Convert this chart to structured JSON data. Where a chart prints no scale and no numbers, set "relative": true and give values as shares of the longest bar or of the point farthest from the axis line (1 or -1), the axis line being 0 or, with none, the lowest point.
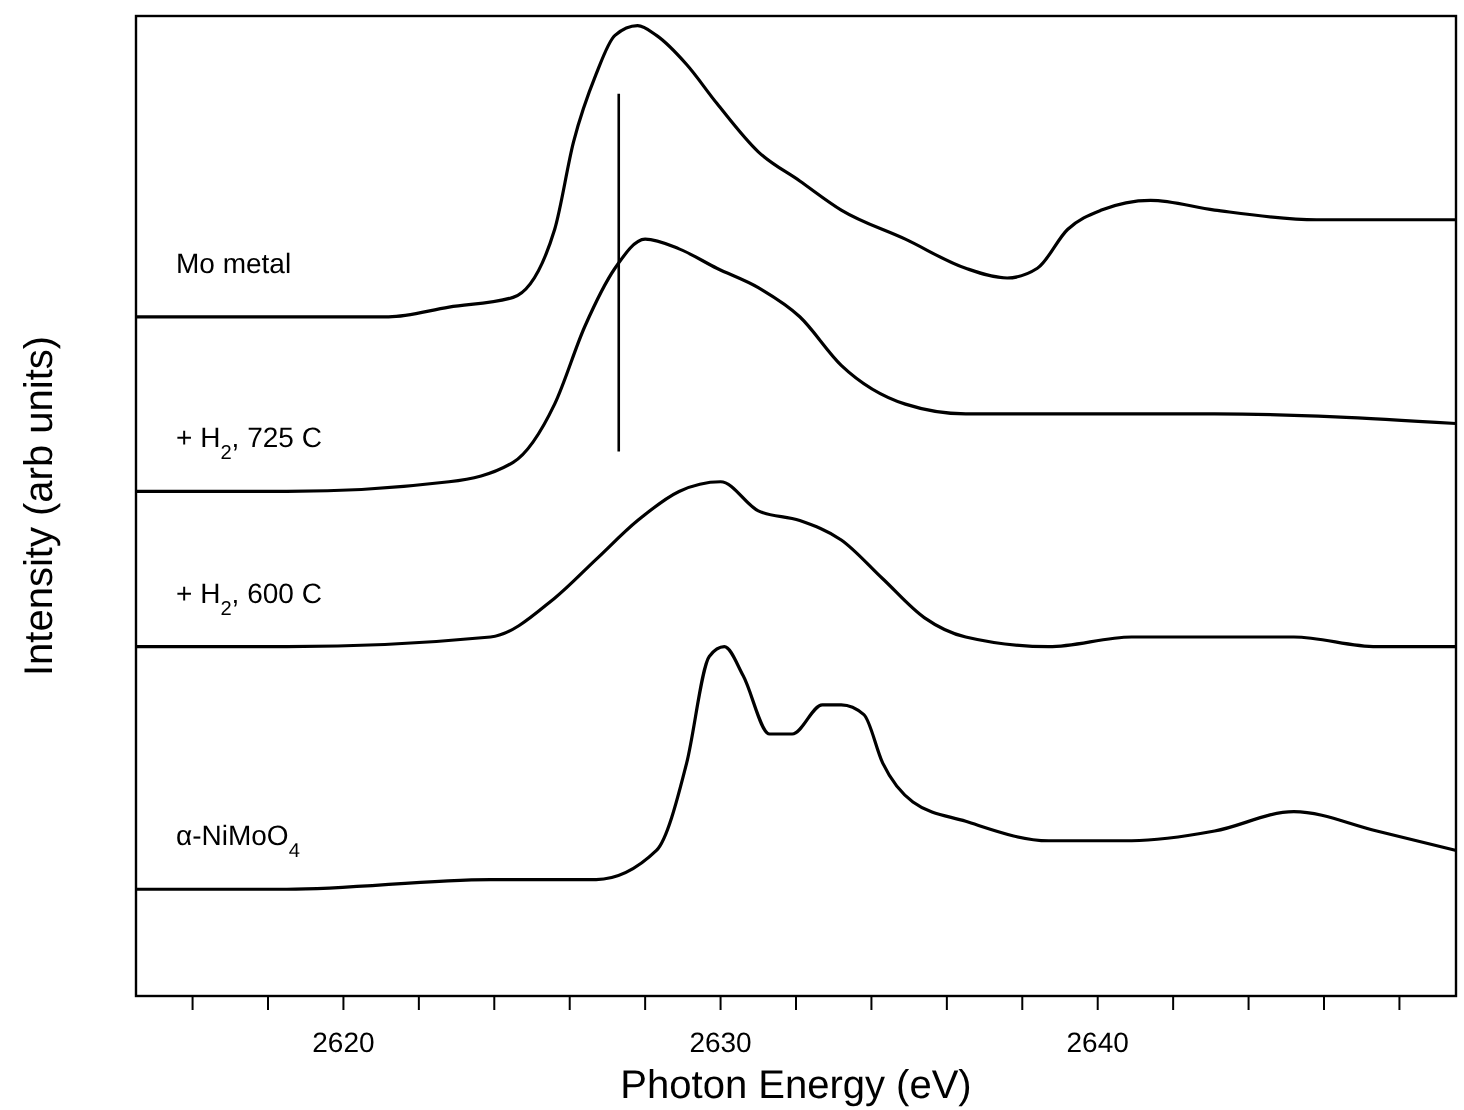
{
  "chart_data": {
    "type": "line",
    "relative": true,
    "xlabel": "Photon  Energy  (eV)",
    "ylabel": "Intensity  (arb units)",
    "xlim": [
      2614.5,
      2649.5
    ],
    "xticks": [
      {
        "value": 2616,
        "label": null
      },
      {
        "value": 2618,
        "label": null
      },
      2620,
      {
        "value": 2622,
        "label": null
      },
      {
        "value": 2624,
        "label": null
      },
      {
        "value": 2626,
        "label": null
      },
      {
        "value": 2628,
        "label": null
      },
      2630,
      {
        "value": 2632,
        "label": null
      },
      {
        "value": 2634,
        "label": null
      },
      {
        "value": 2636,
        "label": null
      },
      {
        "value": 2638,
        "label": null
      },
      2640,
      {
        "value": 2642,
        "label": null
      },
      {
        "value": 2644,
        "label": null
      },
      {
        "value": 2646,
        "label": null
      },
      {
        "value": 2648,
        "label": null
      }
    ],
    "grid": false,
    "tick_labels": "x",
    "line_style": "solid",
    "ref_lines": [
      {
        "axis": "x",
        "value": 2627.3,
        "label": null,
        "color": "#000000"
      }
    ],
    "series": [
      {
        "name": "Mo metal",
        "color": "#000000",
        "x": [
          2614.5,
          2618.5,
          2621.2,
          2622.8,
          2624.5,
          2625.6,
          2626.1,
          2626.7,
          2627.2,
          2627.8,
          2628.3,
          2629.1,
          2629.9,
          2631.0,
          2632.1,
          2633.2,
          2634.9,
          2636.5,
          2637.6,
          2638.4,
          2639.2,
          2640.1,
          2641.4,
          2643.1,
          2645.8,
          2648.5,
          2649.5
        ],
        "values": [
          0.7,
          0.7,
          0.7,
          0.71,
          0.72,
          0.79,
          0.88,
          0.95,
          0.99,
          1,
          0.99,
          0.96,
          0.92,
          0.87,
          0.84,
          0.81,
          0.78,
          0.75,
          0.74,
          0.75,
          0.79,
          0.81,
          0.82,
          0.81,
          0.8,
          0.8,
          0.8
        ]
      },
      {
        "name": "+ H$_{2}$, 725 C",
        "color": "#000000",
        "x": [
          2614.5,
          2618.5,
          2622.8,
          2624.5,
          2625.6,
          2626.4,
          2627.2,
          2628.0,
          2628.9,
          2629.9,
          2631.0,
          2632.1,
          2633.2,
          2634.9,
          2636.5,
          2638.7,
          2643.1,
          2649.5
        ],
        "values": [
          0.52,
          0.52,
          0.53,
          0.55,
          0.61,
          0.69,
          0.75,
          0.78,
          0.77,
          0.75,
          0.73,
          0.7,
          0.65,
          0.61,
          0.6,
          0.6,
          0.6,
          0.59
        ]
      },
      {
        "name": "+ H$_{2}$, 600 C",
        "color": "#000000",
        "x": [
          2614.5,
          2618.5,
          2623.9,
          2625.6,
          2626.7,
          2627.8,
          2628.9,
          2630.0,
          2631.0,
          2632.1,
          2633.2,
          2634.3,
          2635.4,
          2636.5,
          2638.7,
          2640.9,
          2643.1,
          2645.2,
          2647.4,
          2649.5
        ],
        "values": [
          0.36,
          0.36,
          0.37,
          0.41,
          0.45,
          0.49,
          0.52,
          0.53,
          0.5,
          0.49,
          0.47,
          0.43,
          0.39,
          0.37,
          0.36,
          0.37,
          0.37,
          0.37,
          0.36,
          0.36
        ]
      },
      {
        "name": "α-NiMoO$_{4}$",
        "color": "#000000",
        "x": [
          2614.5,
          2618.5,
          2623.9,
          2626.7,
          2628.3,
          2629.1,
          2629.7,
          2630.1,
          2630.6,
          2631.3,
          2631.9,
          2632.7,
          2633.2,
          2633.8,
          2634.3,
          2635.1,
          2636.5,
          2638.7,
          2640.9,
          2643.1,
          2645.2,
          2647.4,
          2649.5
        ],
        "values": [
          0.11,
          0.11,
          0.12,
          0.12,
          0.15,
          0.24,
          0.35,
          0.36,
          0.33,
          0.27,
          0.27,
          0.3,
          0.3,
          0.29,
          0.24,
          0.2,
          0.18,
          0.16,
          0.16,
          0.17,
          0.19,
          0.17,
          0.15
        ]
      }
    ]
  }
}
